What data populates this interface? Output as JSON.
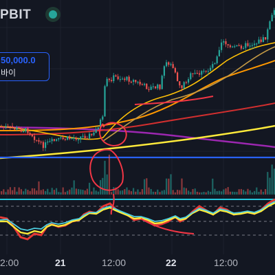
{
  "header": {
    "exchange": "PBIT",
    "status_color": "#26a69a"
  },
  "price_marker": {
    "value": "50,000.0",
    "action": "바이"
  },
  "time_axis": {
    "ticks": [
      "2:00",
      "21",
      "12:00",
      "22",
      "12:00"
    ]
  },
  "colors": {
    "background": "#131722",
    "up_candle": "#26a69a",
    "down_candle": "#ef5350",
    "price_line": "#2962ff",
    "annotation": "#f23645"
  },
  "icons": [
    "status-dot-icon"
  ]
}
